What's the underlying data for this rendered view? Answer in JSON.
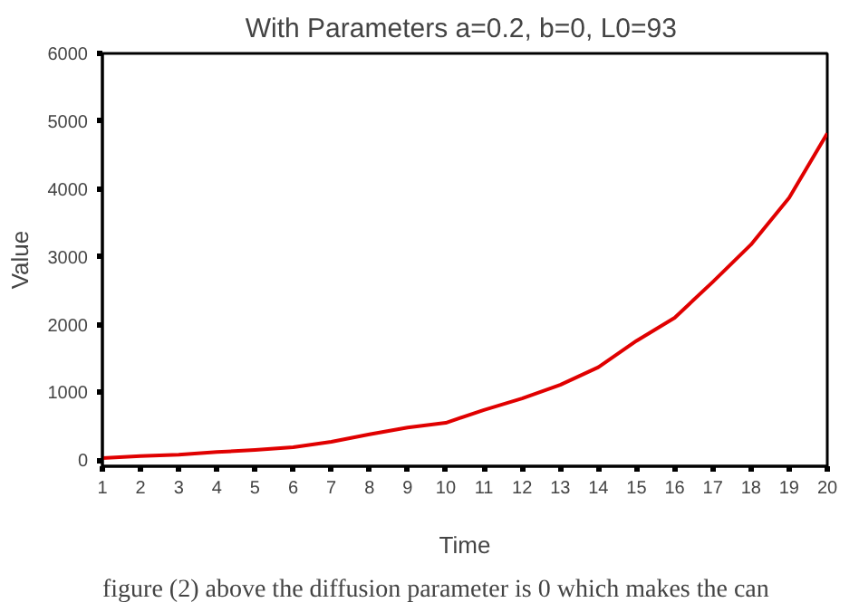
{
  "chart_data": {
    "type": "line",
    "title": "With Parameters a=0.2, b=0,  L0=93",
    "xlabel": "Time",
    "ylabel": "Value",
    "x": [
      1,
      2,
      3,
      4,
      5,
      6,
      7,
      8,
      9,
      10,
      11,
      12,
      13,
      14,
      15,
      16,
      17,
      18,
      19,
      20
    ],
    "series": [
      {
        "color": "#e00000",
        "values": [
          30,
          60,
          80,
          120,
          150,
          190,
          270,
          380,
          480,
          550,
          740,
          910,
          1110,
          1370,
          1760,
          2100,
          2630,
          3180,
          3870,
          4820
        ]
      }
    ],
    "xlim": [
      1,
      20
    ],
    "xticks": [
      1,
      2,
      3,
      4,
      5,
      6,
      7,
      8,
      9,
      10,
      11,
      12,
      13,
      14,
      15,
      16,
      17,
      18,
      19,
      20
    ],
    "ylim": [
      -90,
      6000
    ],
    "yticks": [
      0,
      1000,
      2000,
      3000,
      4000,
      5000,
      6000
    ],
    "grid": false,
    "marker": "none",
    "line_style": "solid",
    "annotations": [
      "figure (2) above the diffusion parameter is 0 which makes the can"
    ]
  }
}
